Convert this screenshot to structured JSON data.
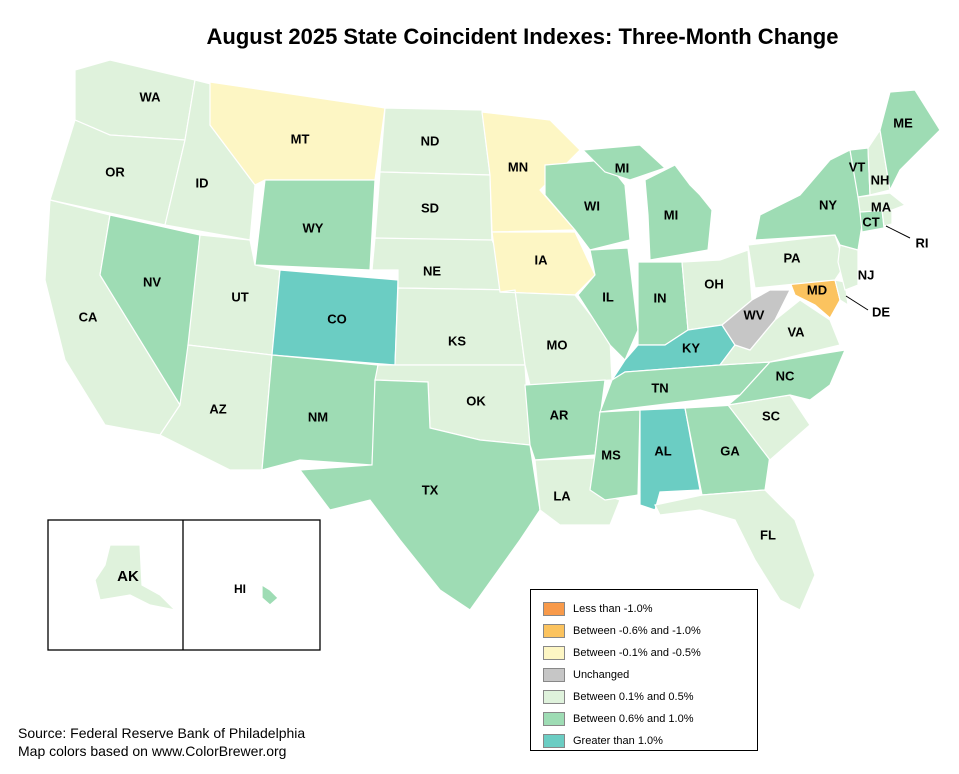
{
  "title": "August 2025 State Coincident Indexes: Three-Month Change",
  "source": [
    "Source: Federal Reserve Bank of Philadelphia",
    "Map colors based on www.ColorBrewer.org"
  ],
  "colors": {
    "lt_neg1": "#f89a4a",
    "neg06_neg10": "#fbc35f",
    "neg01_neg05": "#fdf6c4",
    "unchanged": "#c6c6c6",
    "pos01_05": "#dff2dc",
    "pos06_10": "#9edcb4",
    "gt1": "#6bcdc3"
  },
  "legend": [
    {
      "key": "lt_neg1",
      "label": "Less than -1.0%"
    },
    {
      "key": "neg06_neg10",
      "label": "Between -0.6% and -1.0%"
    },
    {
      "key": "neg01_neg05",
      "label": "Between -0.1% and -0.5%"
    },
    {
      "key": "unchanged",
      "label": "Unchanged"
    },
    {
      "key": "pos01_05",
      "label": "Between 0.1% and 0.5%"
    },
    {
      "key": "pos06_10",
      "label": "Between 0.6% and 1.0%"
    },
    {
      "key": "gt1",
      "label": "Greater than 1.0%"
    }
  ],
  "states": {
    "WA": "pos01_05",
    "OR": "pos01_05",
    "CA": "pos01_05",
    "ID": "pos01_05",
    "NV": "pos06_10",
    "MT": "neg01_neg05",
    "WY": "pos06_10",
    "UT": "pos01_05",
    "AZ": "pos01_05",
    "CO": "gt1",
    "NM": "pos06_10",
    "ND": "pos01_05",
    "SD": "pos01_05",
    "NE": "pos01_05",
    "KS": "pos01_05",
    "OK": "pos01_05",
    "TX": "pos06_10",
    "MN": "neg01_neg05",
    "IA": "neg01_neg05",
    "MO": "pos01_05",
    "AR": "pos06_10",
    "LA": "pos01_05",
    "WI": "pos06_10",
    "IL": "pos06_10",
    "MI": "pos06_10",
    "IN": "pos06_10",
    "OH": "pos01_05",
    "KY": "gt1",
    "TN": "pos06_10",
    "MS": "pos06_10",
    "AL": "gt1",
    "GA": "pos06_10",
    "FL": "pos01_05",
    "SC": "pos01_05",
    "NC": "pos06_10",
    "VA": "pos01_05",
    "WV": "unchanged",
    "MD": "neg06_neg10",
    "DE": "pos01_05",
    "PA": "pos01_05",
    "NJ": "pos01_05",
    "NY": "pos06_10",
    "CT": "pos06_10",
    "RI": "pos01_05",
    "MA": "pos01_05",
    "VT": "pos06_10",
    "NH": "pos01_05",
    "ME": "pos06_10",
    "AK": "pos01_05",
    "HI": "pos06_10"
  },
  "labels": {
    "WA": "WA",
    "OR": "OR",
    "CA": "CA",
    "ID": "ID",
    "NV": "NV",
    "MT": "MT",
    "WY": "WY",
    "UT": "UT",
    "AZ": "AZ",
    "CO": "CO",
    "NM": "NM",
    "ND": "ND",
    "SD": "SD",
    "NE": "NE",
    "KS": "KS",
    "OK": "OK",
    "TX": "TX",
    "MN": "MN",
    "IA": "IA",
    "MO": "MO",
    "AR": "AR",
    "LA": "LA",
    "WI": "WI",
    "IL": "IL",
    "MI": "MI",
    "MI2": "MI",
    "IN": "IN",
    "OH": "OH",
    "KY": "KY",
    "TN": "TN",
    "MS": "MS",
    "AL": "AL",
    "GA": "GA",
    "FL": "FL",
    "SC": "SC",
    "NC": "NC",
    "VA": "VA",
    "WV": "WV",
    "MD": "MD",
    "DE": "DE",
    "PA": "PA",
    "NJ": "NJ",
    "NY": "NY",
    "CT": "CT",
    "RI": "RI",
    "MA": "MA",
    "VT": "VT",
    "NH": "NH",
    "ME": "ME",
    "AK": "AK",
    "HI": "HI"
  }
}
